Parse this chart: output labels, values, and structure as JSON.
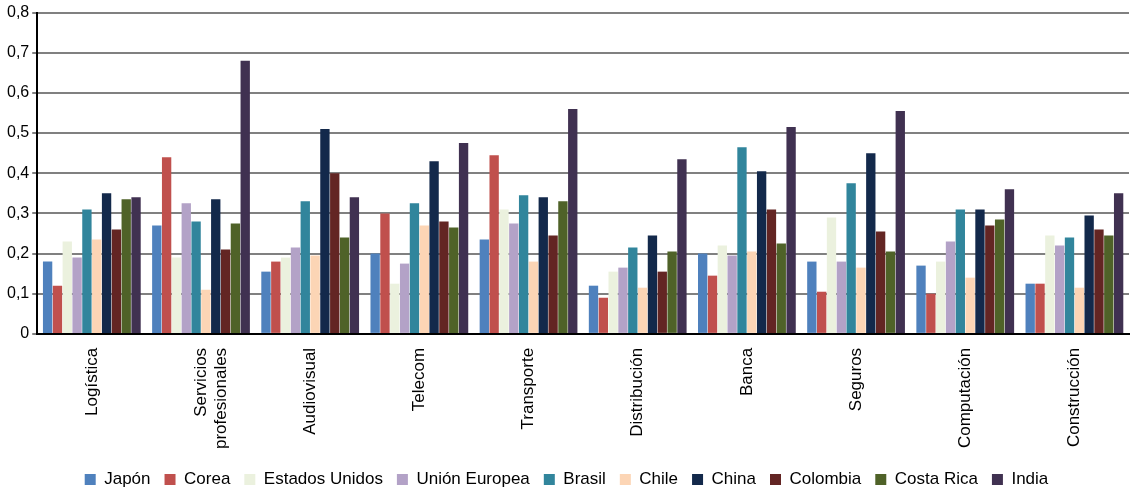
{
  "chart_data": {
    "type": "bar",
    "categories": [
      "Logística",
      "Servicios profesionales",
      "Audiovisual",
      "Telecom",
      "Transporte",
      "Distribución",
      "Banca",
      "Seguros",
      "Computación",
      "Construcción"
    ],
    "series": [
      {
        "name": "Japón",
        "color": "#4f81bd",
        "values": [
          0.18,
          0.27,
          0.155,
          0.2,
          0.235,
          0.12,
          0.2,
          0.18,
          0.17,
          0.125
        ]
      },
      {
        "name": "Corea",
        "color": "#c0504d",
        "values": [
          0.12,
          0.44,
          0.18,
          0.3,
          0.445,
          0.09,
          0.145,
          0.105,
          0.1,
          0.125
        ]
      },
      {
        "name": "Estados Unidos",
        "color": "#ebf1de",
        "values": [
          0.23,
          0.19,
          0.19,
          0.125,
          0.31,
          0.155,
          0.22,
          0.29,
          0.18,
          0.245
        ]
      },
      {
        "name": "Unión Europea",
        "color": "#b3a2c7",
        "values": [
          0.19,
          0.325,
          0.215,
          0.175,
          0.275,
          0.165,
          0.195,
          0.18,
          0.23,
          0.22
        ]
      },
      {
        "name": "Brasil",
        "color": "#31859c",
        "values": [
          0.31,
          0.28,
          0.33,
          0.325,
          0.345,
          0.215,
          0.465,
          0.375,
          0.31,
          0.24
        ]
      },
      {
        "name": "Chile",
        "color": "#fcd5b5",
        "values": [
          0.235,
          0.11,
          0.195,
          0.27,
          0.18,
          0.115,
          0.205,
          0.165,
          0.14,
          0.115
        ]
      },
      {
        "name": "China",
        "color": "#13294b",
        "values": [
          0.35,
          0.335,
          0.51,
          0.43,
          0.34,
          0.245,
          0.405,
          0.45,
          0.31,
          0.295
        ]
      },
      {
        "name": "Colombia",
        "color": "#632523",
        "values": [
          0.26,
          0.21,
          0.4,
          0.28,
          0.245,
          0.155,
          0.31,
          0.255,
          0.27,
          0.26
        ]
      },
      {
        "name": "Costa Rica",
        "color": "#4f6228",
        "values": [
          0.335,
          0.275,
          0.24,
          0.265,
          0.33,
          0.205,
          0.225,
          0.205,
          0.285,
          0.245
        ]
      },
      {
        "name": "India",
        "color": "#403151",
        "values": [
          0.34,
          0.68,
          0.34,
          0.475,
          0.56,
          0.435,
          0.515,
          0.555,
          0.36,
          0.35
        ]
      }
    ],
    "ylim": [
      0,
      0.8
    ],
    "yticks": [
      {
        "value": 0,
        "label": "0"
      },
      {
        "value": 0.1,
        "label": "0,1"
      },
      {
        "value": 0.2,
        "label": "0,2"
      },
      {
        "value": 0.3,
        "label": "0,3"
      },
      {
        "value": 0.4,
        "label": "0,4"
      },
      {
        "value": 0.5,
        "label": "0,5"
      },
      {
        "value": 0.6,
        "label": "0,6"
      },
      {
        "value": 0.7,
        "label": "0,7"
      },
      {
        "value": 0.8,
        "label": "0,8"
      }
    ],
    "grid": "y",
    "legend": "bottom"
  }
}
